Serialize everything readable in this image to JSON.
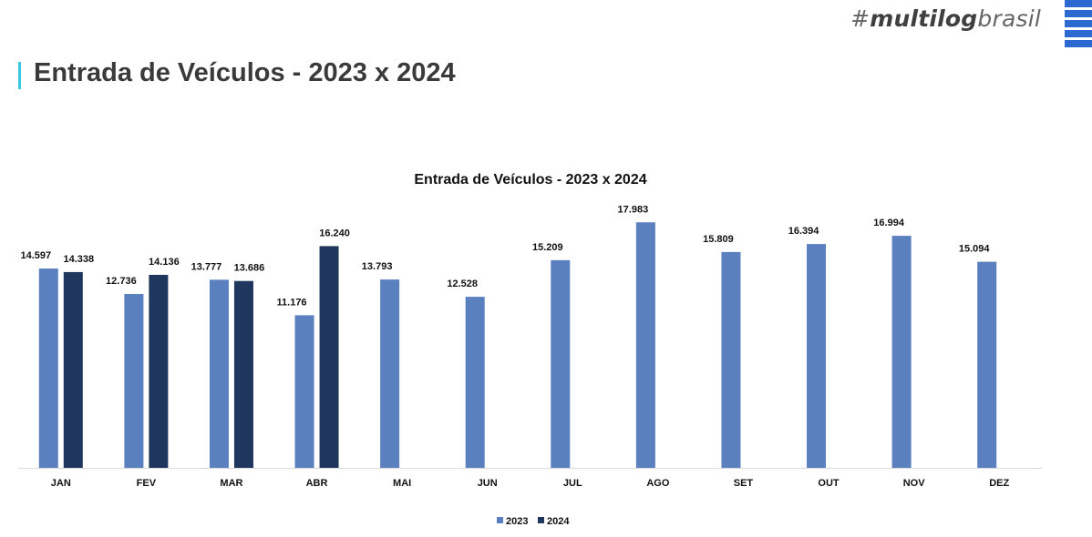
{
  "header": {
    "brand_hash": "#",
    "brand_bold": "multilog",
    "brand_rest": "brasil",
    "page_title": "Entrada de Veículos - 2023 x 2024",
    "accent_color": "#38c9e3",
    "brand_color": "#2c6ad1"
  },
  "chart_data": {
    "type": "bar",
    "title": "Entrada de Veículos - 2023 x 2024",
    "xlabel": "",
    "ylabel": "",
    "ylim": [
      0,
      20000
    ],
    "grid": false,
    "legend_position": "bottom-center",
    "categories": [
      "JAN",
      "FEV",
      "MAR",
      "ABR",
      "MAI",
      "JUN",
      "JUL",
      "AGO",
      "SET",
      "OUT",
      "NOV",
      "DEZ"
    ],
    "series": [
      {
        "name": "2023",
        "color": "#5b80bf",
        "values": [
          14597,
          12736,
          13777,
          11176,
          13793,
          12528,
          15209,
          17983,
          15809,
          16394,
          16994,
          15094
        ],
        "labels": [
          "14.597",
          "12.736",
          "13.777",
          "11.176",
          "13.793",
          "12.528",
          "15.209",
          "17.983",
          "15.809",
          "16.394",
          "16.994",
          "15.094"
        ]
      },
      {
        "name": "2024",
        "color": "#1f365e",
        "values": [
          14338,
          14136,
          13686,
          16240,
          null,
          null,
          null,
          null,
          null,
          null,
          null,
          null
        ],
        "labels": [
          "14.338",
          "14.136",
          "13.686",
          "16.240",
          null,
          null,
          null,
          null,
          null,
          null,
          null,
          null
        ]
      }
    ]
  }
}
